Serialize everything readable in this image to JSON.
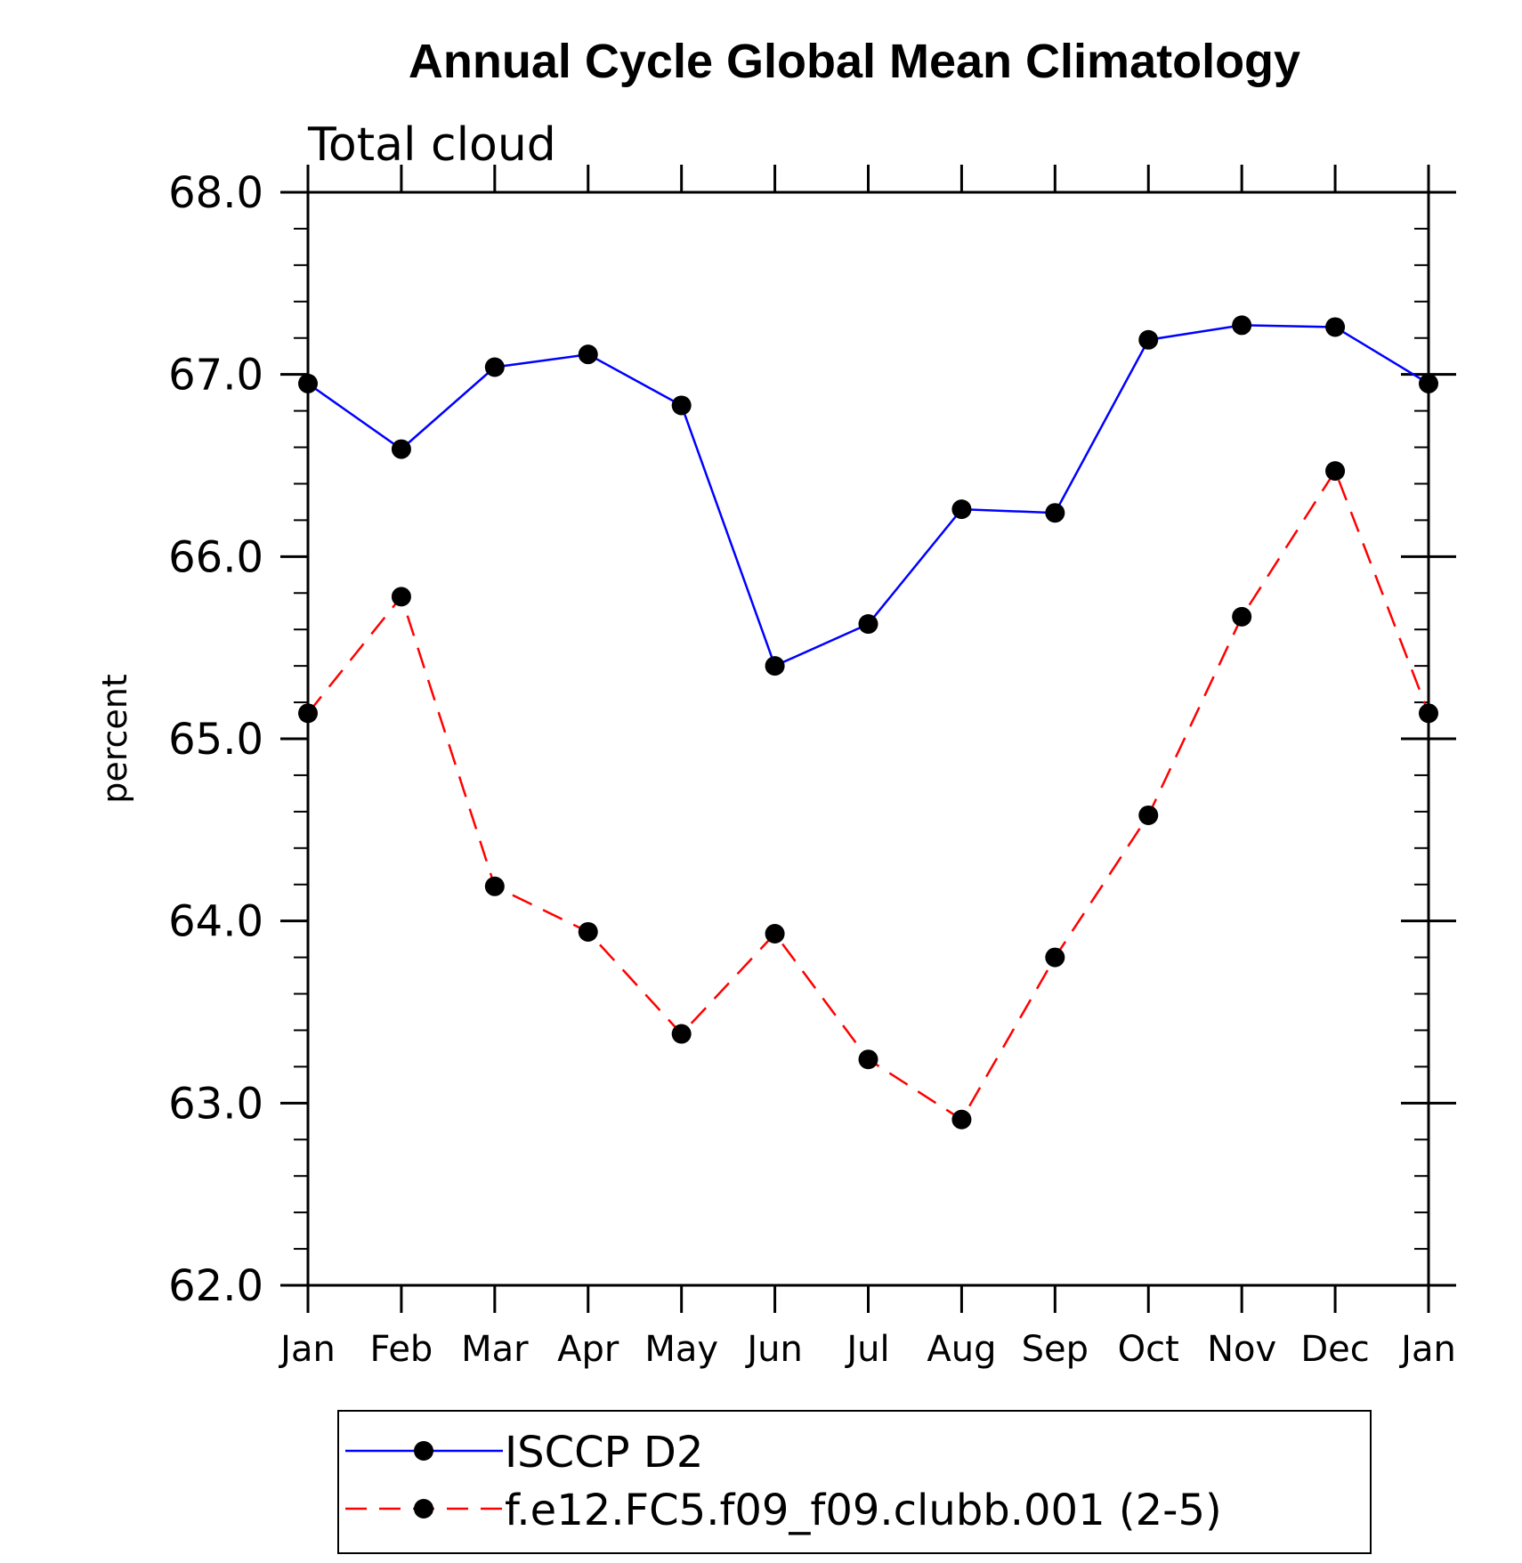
{
  "chart_data": {
    "type": "line",
    "title": "Annual Cycle Global Mean Climatology",
    "subtitle": "Total cloud",
    "xlabel": "",
    "ylabel": "percent",
    "categories": [
      "Jan",
      "Feb",
      "Mar",
      "Apr",
      "May",
      "Jun",
      "Jul",
      "Aug",
      "Sep",
      "Oct",
      "Nov",
      "Dec",
      "Jan"
    ],
    "ylim": [
      62.0,
      68.0
    ],
    "yticks": [
      "62.0",
      "63.0",
      "64.0",
      "65.0",
      "66.0",
      "67.0",
      "68.0"
    ],
    "grid": false,
    "legend_position": "bottom",
    "series": [
      {
        "name": "ISCCP D2",
        "color": "#0000ff",
        "line_style": "solid",
        "marker": "filled-circle",
        "values": [
          66.95,
          66.59,
          67.04,
          67.11,
          66.83,
          65.4,
          65.63,
          66.26,
          66.24,
          67.19,
          67.27,
          67.26,
          66.95
        ]
      },
      {
        "name": "f.e12.FC5.f09_f09.clubb.001 (2-5)",
        "color": "#ff0000",
        "line_style": "dashed",
        "marker": "filled-circle",
        "values": [
          65.14,
          65.78,
          64.19,
          63.94,
          63.38,
          63.93,
          63.24,
          62.91,
          63.8,
          64.58,
          65.67,
          66.47,
          65.14
        ]
      }
    ]
  }
}
